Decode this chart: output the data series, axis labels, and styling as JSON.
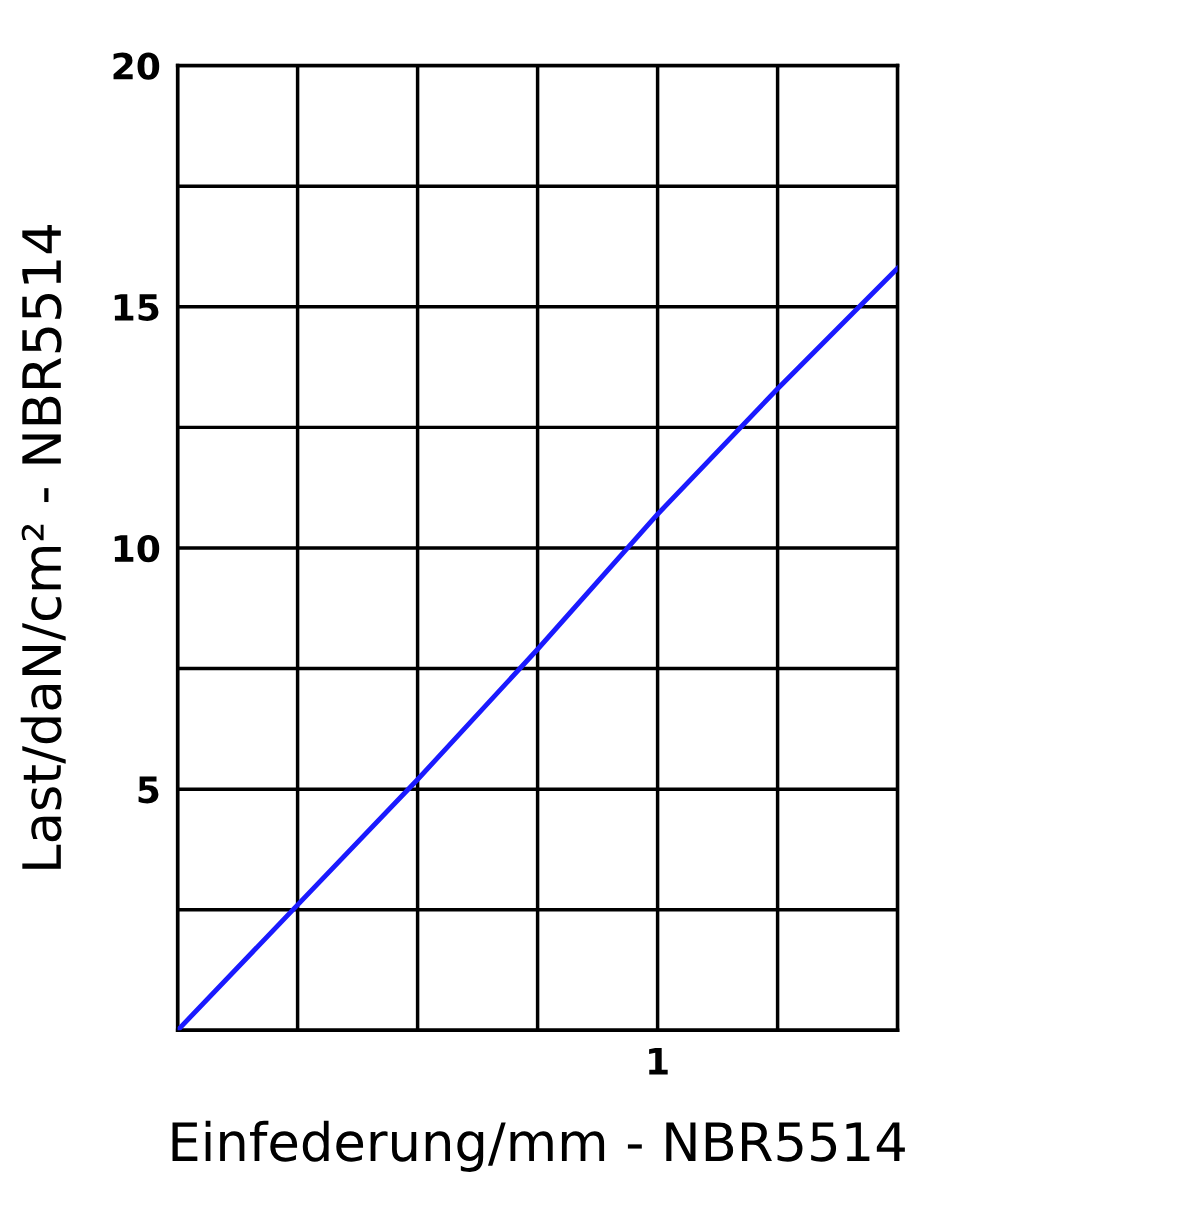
{
  "chart_data": {
    "type": "line",
    "xlabel": "Einfederung/mm - NBR5514",
    "ylabel": "Last/daN/cm² - NBR5514",
    "categories": [
      null,
      null,
      null,
      null,
      "1",
      null,
      null
    ],
    "series": [
      {
        "color": "#1a1aff",
        "values": [
          0,
          2.6,
          5.2,
          7.9,
          10.7,
          13.3,
          15.8
        ]
      }
    ],
    "ylim": [
      0,
      20
    ],
    "yticks": [
      {
        "value": 0,
        "label": null
      },
      {
        "value": 2.5,
        "label": null
      },
      {
        "value": 5,
        "label": "5"
      },
      {
        "value": 7.5,
        "label": null
      },
      {
        "value": 10,
        "label": "10"
      },
      {
        "value": 12.5,
        "label": null
      },
      {
        "value": 15,
        "label": "15"
      },
      {
        "value": 17.5,
        "label": null
      },
      {
        "value": 20,
        "label": "20"
      }
    ],
    "grid": true,
    "marker": "none",
    "line_style": "solid"
  }
}
